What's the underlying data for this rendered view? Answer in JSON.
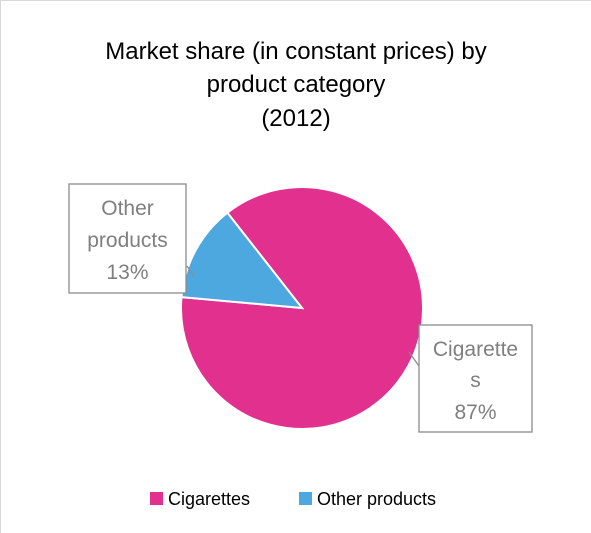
{
  "chart_data": {
    "type": "pie",
    "title_lines": [
      "Market share (in constant prices) by",
      "product category",
      "(2012)"
    ],
    "categories": [
      "Cigarettes",
      "Other products"
    ],
    "values": [
      87,
      13
    ],
    "colors": [
      "#E2308F",
      "#4CA8DE"
    ],
    "data_labels": [
      {
        "lines": [
          "Cigarette",
          "s",
          "87%"
        ]
      },
      {
        "lines": [
          "Other",
          "products",
          "13%"
        ]
      }
    ],
    "legend": {
      "placement": "bottom",
      "entries": [
        "Cigarettes",
        "Other products"
      ]
    },
    "frame_border_color": "#D9D9D9",
    "label_text_color": "#7F7F7F",
    "label_border_color": "#8C8C8C"
  }
}
